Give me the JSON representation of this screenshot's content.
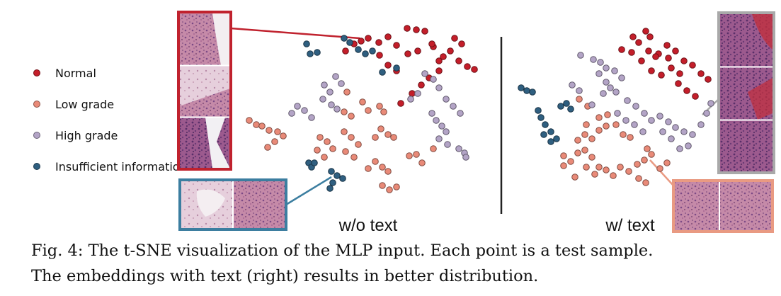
{
  "figure": {
    "caption_line1": "Fig. 4: The t-SNE visualization of the MLP input. Each point is a test sample.",
    "caption_line2": "The embeddings with text (right) results in better distribution."
  },
  "chart_data": [
    {
      "type": "scatter",
      "title": "w/o text",
      "xlabel": "",
      "ylabel": "",
      "axes_visible": false,
      "grid": false,
      "legend_position": "left",
      "legend": [
        {
          "name": "Normal",
          "color": "#c41e2a"
        },
        {
          "name": "Low grade",
          "color": "#e98a78"
        },
        {
          "name": "High grade",
          "color": "#b3a4c6"
        },
        {
          "name": "Insufficient information",
          "color": "#2f5f80"
        }
      ],
      "series": [
        {
          "name": "Normal",
          "color": "#c41e2a",
          "points": [
            [
              510,
              58
            ],
            [
              520,
              54
            ],
            [
              535,
              60
            ],
            [
              548,
              52
            ],
            [
              560,
              64
            ],
            [
              575,
              40
            ],
            [
              588,
              42
            ],
            [
              600,
              44
            ],
            [
              612,
              66
            ],
            [
              626,
              80
            ],
            [
              636,
              72
            ],
            [
              648,
              86
            ],
            [
              660,
              94
            ],
            [
              670,
              98
            ],
            [
              642,
              54
            ],
            [
              652,
              62
            ],
            [
              620,
              100
            ],
            [
              606,
              110
            ],
            [
              595,
              120
            ],
            [
              582,
              132
            ],
            [
              566,
              146
            ],
            [
              610,
              62
            ],
            [
              590,
              72
            ],
            [
              536,
              78
            ],
            [
              548,
              92
            ],
            [
              560,
              100
            ],
            [
              488,
              72
            ],
            [
              500,
              62
            ],
            [
              576,
              76
            ],
            [
              620,
              86
            ]
          ]
        },
        {
          "name": "Low grade",
          "color": "#e98a78",
          "points": [
            [
              352,
              170
            ],
            [
              362,
              176
            ],
            [
              370,
              178
            ],
            [
              380,
              184
            ],
            [
              392,
              186
            ],
            [
              400,
              192
            ],
            [
              388,
              200
            ],
            [
              378,
              208
            ],
            [
              452,
              194
            ],
            [
              462,
              200
            ],
            [
              470,
              210
            ],
            [
              448,
              212
            ],
            [
              458,
              222
            ],
            [
              486,
              186
            ],
            [
              496,
              194
            ],
            [
              506,
              204
            ],
            [
              488,
              214
            ],
            [
              500,
              222
            ],
            [
              538,
              182
            ],
            [
              548,
              190
            ],
            [
              556,
              194
            ],
            [
              530,
              194
            ],
            [
              512,
              144
            ],
            [
              520,
              156
            ],
            [
              536,
              150
            ],
            [
              542,
              158
            ],
            [
              490,
              130
            ],
            [
              486,
              158
            ],
            [
              496,
              164
            ],
            [
              530,
              228
            ],
            [
              540,
              236
            ],
            [
              548,
              242
            ],
            [
              520,
              238
            ],
            [
              540,
              262
            ],
            [
              550,
              268
            ],
            [
              560,
              264
            ],
            [
              578,
              220
            ],
            [
              588,
              218
            ],
            [
              596,
              230
            ],
            [
              612,
              210
            ]
          ]
        },
        {
          "name": "High grade",
          "color": "#b3a4c6",
          "points": [
            [
              412,
              160
            ],
            [
              420,
              150
            ],
            [
              430,
              156
            ],
            [
              440,
              166
            ],
            [
              458,
              120
            ],
            [
              466,
              130
            ],
            [
              474,
              108
            ],
            [
              482,
              118
            ],
            [
              456,
              140
            ],
            [
              468,
              148
            ],
            [
              476,
              154
            ],
            [
              600,
              104
            ],
            [
              612,
              112
            ],
            [
              620,
              124
            ],
            [
              630,
              140
            ],
            [
              640,
              150
            ],
            [
              650,
              160
            ],
            [
              590,
              132
            ],
            [
              580,
              140
            ],
            [
              610,
              160
            ],
            [
              616,
              170
            ],
            [
              624,
              178
            ],
            [
              630,
              186
            ],
            [
              620,
              196
            ],
            [
              632,
              204
            ],
            [
              648,
              210
            ],
            [
              656,
              216
            ],
            [
              658,
              222
            ]
          ]
        },
        {
          "name": "Insufficient information",
          "color": "#2f5f80",
          "points": [
            [
              433,
              62
            ],
            [
              438,
              76
            ],
            [
              448,
              74
            ],
            [
              506,
              70
            ],
            [
              516,
              76
            ],
            [
              526,
              72
            ],
            [
              486,
              54
            ],
            [
              540,
              102
            ],
            [
              436,
              230
            ],
            [
              440,
              236
            ],
            [
              444,
              230
            ],
            [
              468,
              242
            ],
            [
              476,
              248
            ],
            [
              484,
              252
            ],
            [
              470,
              258
            ],
            [
              466,
              266
            ],
            [
              560,
              96
            ],
            [
              494,
              60
            ]
          ]
        }
      ]
    },
    {
      "type": "scatter",
      "title": "w/ text",
      "xlabel": "",
      "ylabel": "",
      "axes_visible": false,
      "grid": false,
      "legend_position": "left",
      "series": [
        {
          "name": "Normal",
          "color": "#c41e2a",
          "points": [
            [
              878,
              70
            ],
            [
              892,
              74
            ],
            [
              902,
              60
            ],
            [
              912,
              44
            ],
            [
              918,
              52
            ],
            [
              930,
              76
            ],
            [
              942,
              64
            ],
            [
              954,
              72
            ],
            [
              966,
              86
            ],
            [
              978,
              92
            ],
            [
              990,
              104
            ],
            [
              1000,
              112
            ],
            [
              906,
              86
            ],
            [
              920,
              100
            ],
            [
              934,
              106
            ],
            [
              948,
              96
            ],
            [
              958,
              118
            ],
            [
              970,
              128
            ],
            [
              982,
              136
            ],
            [
              894,
              52
            ],
            [
              916,
              72
            ],
            [
              926,
              80
            ],
            [
              944,
              82
            ],
            [
              960,
              104
            ]
          ]
        },
        {
          "name": "Low grade",
          "color": "#e98a78",
          "points": [
            [
              796,
              220
            ],
            [
              806,
              228
            ],
            [
              816,
              216
            ],
            [
              826,
              212
            ],
            [
              836,
              222
            ],
            [
              846,
              236
            ],
            [
              856,
              240
            ],
            [
              866,
              248
            ],
            [
              876,
              236
            ],
            [
              888,
              242
            ],
            [
              900,
              232
            ],
            [
              910,
              226
            ],
            [
              920,
              218
            ],
            [
              914,
              210
            ],
            [
              902,
              252
            ],
            [
              912,
              258
            ],
            [
              828,
              236
            ],
            [
              840,
              246
            ],
            [
              812,
              250
            ],
            [
              796,
              234
            ],
            [
              816,
              198
            ],
            [
              826,
              190
            ],
            [
              836,
              196
            ],
            [
              846,
              184
            ],
            [
              856,
              178
            ],
            [
              870,
              176
            ],
            [
              880,
              190
            ],
            [
              890,
              194
            ],
            [
              846,
              166
            ],
            [
              858,
              162
            ],
            [
              828,
              176
            ],
            [
              932,
              238
            ],
            [
              942,
              230
            ],
            [
              818,
              140
            ],
            [
              830,
              150
            ]
          ]
        },
        {
          "name": "High grade",
          "color": "#b3a4c6",
          "points": [
            [
              820,
              78
            ],
            [
              838,
              84
            ],
            [
              848,
              88
            ],
            [
              856,
              96
            ],
            [
              868,
              100
            ],
            [
              878,
              110
            ],
            [
              862,
              124
            ],
            [
              870,
              130
            ],
            [
              886,
              142
            ],
            [
              898,
              150
            ],
            [
              910,
              160
            ],
            [
              920,
              170
            ],
            [
              932,
              164
            ],
            [
              944,
              172
            ],
            [
              954,
              180
            ],
            [
              966,
              186
            ],
            [
              978,
              190
            ],
            [
              990,
              176
            ],
            [
              998,
              160
            ],
            [
              1004,
              146
            ],
            [
              936,
              186
            ],
            [
              948,
              196
            ],
            [
              960,
              210
            ],
            [
              972,
              206
            ],
            [
              808,
              120
            ],
            [
              818,
              128
            ],
            [
              846,
              104
            ],
            [
              856,
              116
            ],
            [
              872,
              160
            ],
            [
              884,
              170
            ],
            [
              896,
              176
            ],
            [
              908,
              186
            ],
            [
              836,
              148
            ],
            [
              852,
              132
            ]
          ]
        },
        {
          "name": "Insufficient information",
          "color": "#2f5f80",
          "points": [
            [
              736,
              124
            ],
            [
              744,
              128
            ],
            [
              752,
              130
            ],
            [
              760,
              156
            ],
            [
              764,
              166
            ],
            [
              770,
              176
            ],
            [
              778,
              186
            ],
            [
              786,
              196
            ],
            [
              792,
              150
            ],
            [
              800,
              146
            ],
            [
              806,
              154
            ],
            [
              768,
              190
            ],
            [
              778,
              200
            ]
          ]
        }
      ]
    }
  ]
}
